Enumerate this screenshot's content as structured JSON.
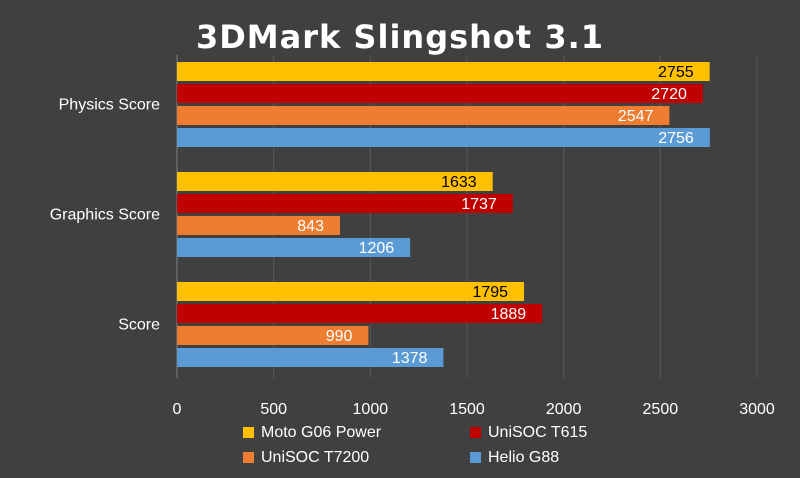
{
  "chart_data": {
    "type": "bar",
    "orientation": "horizontal",
    "title": "3DMark Slingshot 3.1",
    "categories": [
      "Physics Score",
      "Graphics Score",
      "Score"
    ],
    "series": [
      {
        "name": "Moto G06 Power",
        "color": "#ffc000",
        "label_color": "#000000",
        "values": [
          2755,
          1633,
          1795
        ]
      },
      {
        "name": "UniSOC T615",
        "color": "#c00000",
        "label_color": "#ffffff",
        "values": [
          2720,
          1737,
          1889
        ]
      },
      {
        "name": "UniSOC T7200",
        "color": "#ed7d31",
        "label_color": "#ffffff",
        "values": [
          2547,
          843,
          990
        ]
      },
      {
        "name": "Helio G88",
        "color": "#5b9bd5",
        "label_color": "#ffffff",
        "values": [
          2756,
          1206,
          1378
        ]
      }
    ],
    "x_ticks": [
      "0",
      "500",
      "1000",
      "1500",
      "2000",
      "2500",
      "3000"
    ],
    "xlim": [
      0,
      3000
    ],
    "grid": true,
    "legend_position": "bottom",
    "background": "#404040",
    "grid_color": "#595959"
  }
}
